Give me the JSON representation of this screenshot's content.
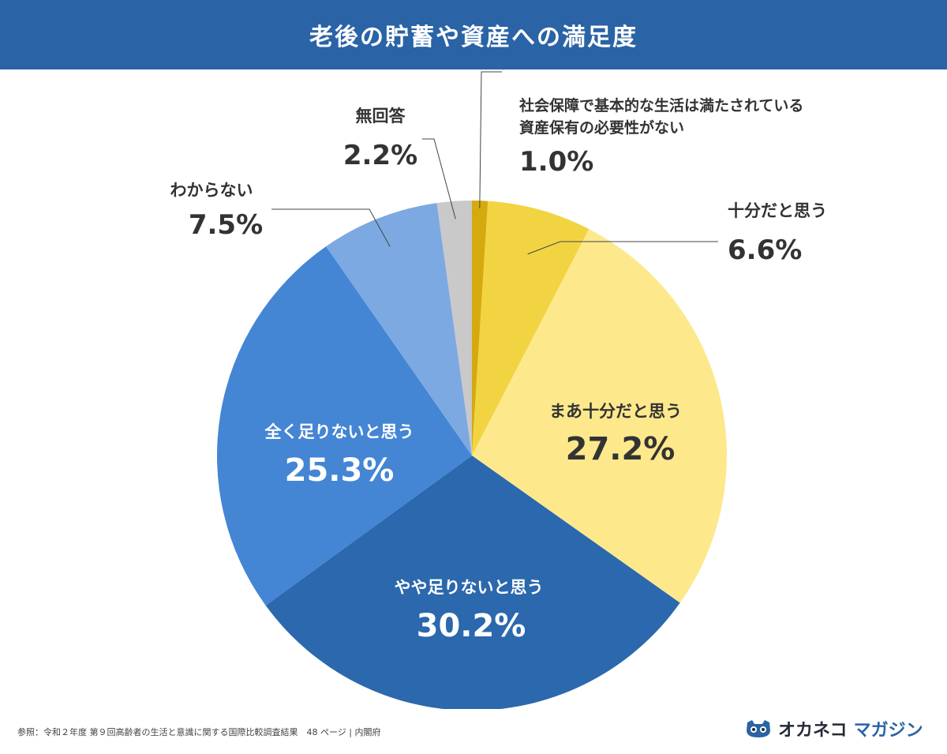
{
  "title": "老後の貯蓄や資産への満足度",
  "colors": {
    "header_bg": "#2a63a6",
    "leader_line": "#444444"
  },
  "chart_data": {
    "type": "pie",
    "title": "老後の貯蓄や資産への満足度",
    "start": "12 o'clock, clockwise",
    "slices": [
      {
        "id": "s0",
        "label": [
          "社会保障で基本的な生活は満たされている",
          "資産保有の必要性がない"
        ],
        "value": 1.0,
        "display": "1.0%",
        "color": "#d6aa0e",
        "text_color": "#333333"
      },
      {
        "id": "s1",
        "label": [
          "十分だと思う"
        ],
        "value": 6.6,
        "display": "6.6%",
        "color": "#f2d443",
        "text_color": "#333333"
      },
      {
        "id": "s2",
        "label": [
          "まあ十分だと思う"
        ],
        "value": 27.2,
        "display": "27.2%",
        "color": "#fde98c",
        "text_color": "#333333"
      },
      {
        "id": "s3",
        "label": [
          "やや足りないと思う"
        ],
        "value": 30.2,
        "display": "30.2%",
        "color": "#2b68ad",
        "text_color": "#ffffff"
      },
      {
        "id": "s4",
        "label": [
          "全く足りないと思う"
        ],
        "value": 25.3,
        "display": "25.3%",
        "color": "#4485d4",
        "text_color": "#ffffff"
      },
      {
        "id": "s5",
        "label": [
          "わからない"
        ],
        "value": 7.5,
        "display": "7.5%",
        "color": "#7ca9e1",
        "text_color": "#333333"
      },
      {
        "id": "s6",
        "label": [
          "無回答"
        ],
        "value": 2.2,
        "display": "2.2%",
        "color": "#c9c9c9",
        "text_color": "#333333"
      }
    ]
  },
  "footer": {
    "source": "参照：令和２年度 第９回高齢者の生活と意識に関する国際比較調査結果　48 ページ | 内閣府",
    "brand_part1": "オカネコ",
    "brand_part2": "マガジン",
    "brand_color": "#2a63a6",
    "brand_icon": "cat-face-icon"
  }
}
